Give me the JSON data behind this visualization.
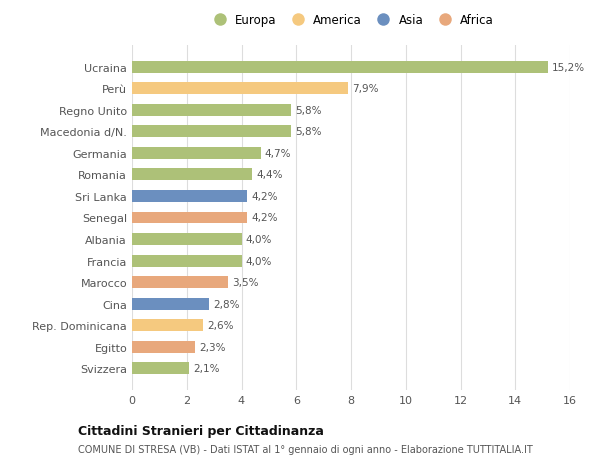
{
  "categories": [
    "Svizzera",
    "Egitto",
    "Rep. Dominicana",
    "Cina",
    "Marocco",
    "Francia",
    "Albania",
    "Senegal",
    "Sri Lanka",
    "Romania",
    "Germania",
    "Macedonia d/N.",
    "Regno Unito",
    "Perù",
    "Ucraina"
  ],
  "values": [
    2.1,
    2.3,
    2.6,
    2.8,
    3.5,
    4.0,
    4.0,
    4.2,
    4.2,
    4.4,
    4.7,
    5.8,
    5.8,
    7.9,
    15.2
  ],
  "labels": [
    "2,1%",
    "2,3%",
    "2,6%",
    "2,8%",
    "3,5%",
    "4,0%",
    "4,0%",
    "4,2%",
    "4,2%",
    "4,4%",
    "4,7%",
    "5,8%",
    "5,8%",
    "7,9%",
    "15,2%"
  ],
  "colors": [
    "#adc178",
    "#e8a87c",
    "#f5c97f",
    "#6b8fbf",
    "#e8a87c",
    "#adc178",
    "#adc178",
    "#e8a87c",
    "#6b8fbf",
    "#adc178",
    "#adc178",
    "#adc178",
    "#adc178",
    "#f5c97f",
    "#adc178"
  ],
  "legend_labels": [
    "Europa",
    "America",
    "Asia",
    "Africa"
  ],
  "legend_colors": [
    "#adc178",
    "#f5c97f",
    "#6b8fbf",
    "#e8a87c"
  ],
  "title": "Cittadini Stranieri per Cittadinanza",
  "subtitle": "COMUNE DI STRESA (VB) - Dati ISTAT al 1° gennaio di ogni anno - Elaborazione TUTTITALIA.IT",
  "xlim": [
    0,
    16
  ],
  "xticks": [
    0,
    2,
    4,
    6,
    8,
    10,
    12,
    14,
    16
  ],
  "background_color": "#ffffff",
  "grid_color": "#dddddd",
  "bar_height": 0.55
}
